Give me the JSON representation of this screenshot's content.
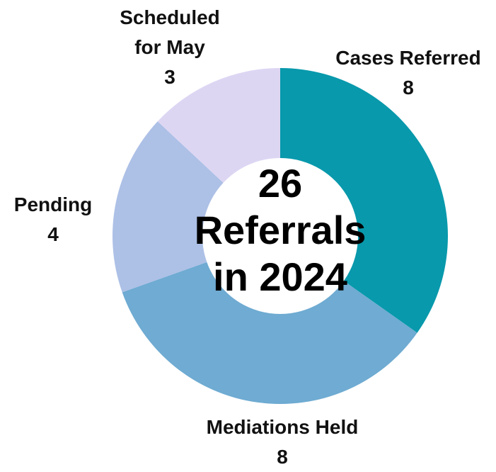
{
  "chart_data": {
    "type": "donut",
    "center_text": [
      "26",
      "Referrals",
      "in 2024"
    ],
    "categories": [
      "Cases Referred",
      "Mediations Held",
      "Pending",
      "Scheduled for May"
    ],
    "values": [
      8,
      8,
      4,
      3
    ],
    "colors": [
      "#0899ac",
      "#6fabd2",
      "#adc0e6",
      "#ddd6f3"
    ]
  }
}
